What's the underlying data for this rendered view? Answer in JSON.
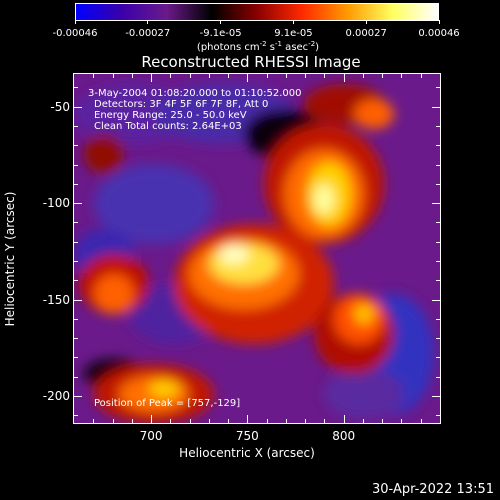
{
  "colorbar": {
    "tick_labels": [
      "-0.00046",
      "-0.00027",
      "-9.1e-05",
      "9.1e-05",
      "0.00027",
      "0.00046"
    ],
    "units_prefix": "(photons cm",
    "units_exp1": "-2",
    "units_mid": " s",
    "units_exp2": "-1",
    "units_suffix": " asec",
    "units_exp3": "-2",
    "units_close": ")",
    "colors": [
      "#0000ff",
      "#3a00aa",
      "#6a1a8a",
      "#000000",
      "#8a0000",
      "#ff2a00",
      "#ff9a00",
      "#ffff60",
      "#ffffff"
    ]
  },
  "plot": {
    "title": "Reconstructed RHESSI Image",
    "info_lines": [
      "3-May-2004 01:08:20.000 to 01:10:52.000",
      "Detectors: 3F 4F 5F 6F 7F 8F, Att 0",
      "Energy Range: 25.0 - 50.0 keV",
      "Clean    Total counts: 2.64E+03"
    ],
    "peak_text": "Position of Peak = [757,-129]",
    "y_axis_title": "Heliocentric Y (arcsec)",
    "x_axis_title": "Heliocentric X (arcsec)",
    "y_ticks": [
      {
        "value": -50,
        "label": "-50"
      },
      {
        "value": -100,
        "label": "-100"
      },
      {
        "value": -150,
        "label": "-150"
      },
      {
        "value": -200,
        "label": "-200"
      }
    ],
    "x_ticks": [
      {
        "value": 700,
        "label": "700"
      },
      {
        "value": 750,
        "label": "750"
      },
      {
        "value": 800,
        "label": "800"
      }
    ],
    "x_range": [
      660,
      850
    ],
    "y_range": [
      -214,
      -33
    ]
  },
  "footer": {
    "timestamp": "30-Apr-2022 13:51"
  }
}
